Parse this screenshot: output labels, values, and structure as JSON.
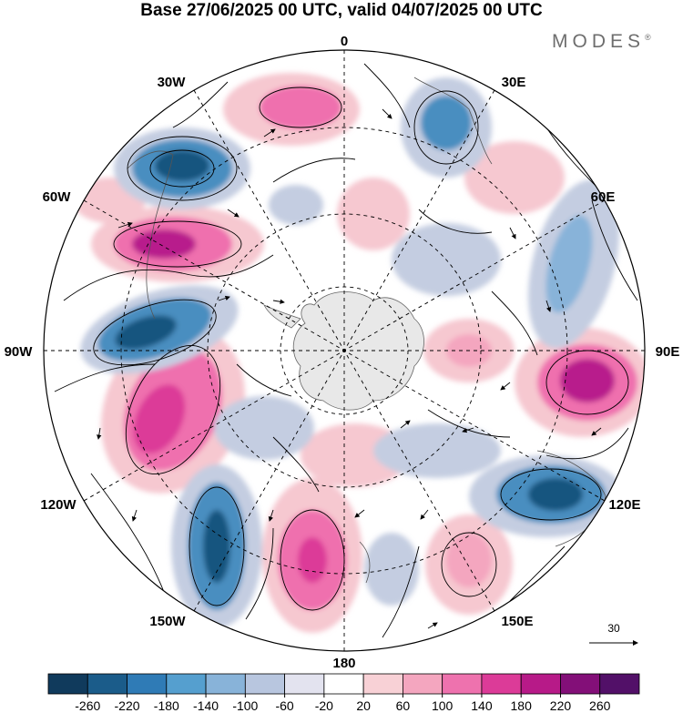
{
  "title": "Base 27/06/2025 00 UTC, valid 04/07/2025 00 UTC",
  "brand": {
    "name": "MODES",
    "mark": "®"
  },
  "map": {
    "projection": "south-polar-stereographic",
    "longitude_labels": {
      "top": "0",
      "top_right": "30E",
      "upper_right": "60E",
      "right": "90E",
      "lower_right": "120E",
      "bottom_right": "150E",
      "bottom": "180",
      "bottom_left": "150W",
      "lower_left": "120W",
      "left": "90W",
      "upper_left": "60W",
      "top_left": "30W"
    },
    "fill_colors": {
      "neg_strong": "#15547f",
      "neg_mid": "#4a8ec0",
      "neg_light": "#c4cde1",
      "neutral": "#ffffff",
      "pos_light": "#f6c8d0",
      "pos_mid": "#ef6fae",
      "pos_strong": "#b81a8c",
      "land": "#e8e8e8"
    }
  },
  "reference_vector": {
    "value": "30",
    "icon": "arrow-right-icon"
  },
  "colorbar": {
    "ticks": [
      "-260",
      "-220",
      "-180",
      "-140",
      "-100",
      "-60",
      "-20",
      "20",
      "60",
      "100",
      "140",
      "180",
      "220",
      "260"
    ],
    "colors": [
      "#103a5c",
      "#1b5c8a",
      "#2f7bb6",
      "#559fcf",
      "#88b3d9",
      "#b8c6df",
      "#e3e3ef",
      "#ffffff",
      "#f8d1d6",
      "#f4a6bf",
      "#ee72ae",
      "#dc3b98",
      "#b71a88",
      "#830f78",
      "#521068"
    ]
  }
}
